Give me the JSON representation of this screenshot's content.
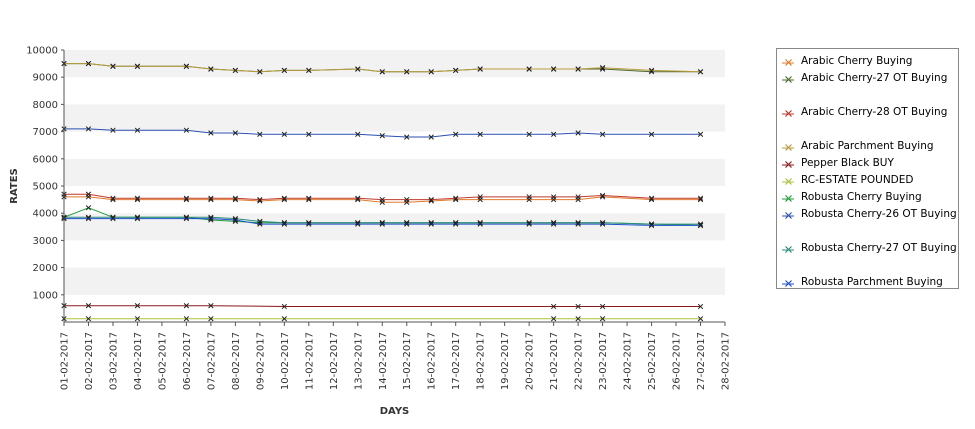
{
  "chart_data": {
    "type": "line",
    "xlabel": "DAYS",
    "ylabel": "RATES",
    "ylim": [
      0,
      10000
    ],
    "yticks": [
      1000,
      2000,
      3000,
      4000,
      5000,
      6000,
      7000,
      8000,
      9000,
      10000
    ],
    "x": [
      "01-02-2017",
      "02-02-2017",
      "03-02-2017",
      "04-02-2017",
      "05-02-2017",
      "06-02-2017",
      "07-02-2017",
      "08-02-2017",
      "09-02-2017",
      "10-02-2017",
      "11-02-2017",
      "12-02-2017",
      "13-02-2017",
      "14-02-2017",
      "15-02-2017",
      "16-02-2017",
      "17-02-2017",
      "18-02-2017",
      "19-02-2017",
      "20-02-2017",
      "21-02-2017",
      "22-02-2017",
      "23-02-2017",
      "24-02-2017",
      "25-02-2017",
      "26-02-2017",
      "27-02-2017",
      "28-02-2017"
    ],
    "grid": "alternating horizontal bands",
    "legend_position": "right",
    "series": [
      {
        "name": "Arabic Cherry Buying",
        "color": "#e07b2a",
        "points": [
          [
            0,
            4600
          ],
          [
            1,
            4600
          ],
          [
            2,
            4500
          ],
          [
            3,
            4500
          ],
          [
            5,
            4500
          ],
          [
            6,
            4500
          ],
          [
            7,
            4500
          ],
          [
            8,
            4450
          ],
          [
            9,
            4500
          ],
          [
            10,
            4500
          ],
          [
            12,
            4500
          ],
          [
            13,
            4400
          ],
          [
            14,
            4400
          ],
          [
            15,
            4450
          ],
          [
            16,
            4500
          ],
          [
            17,
            4500
          ],
          [
            19,
            4500
          ],
          [
            20,
            4500
          ],
          [
            21,
            4500
          ],
          [
            22,
            4600
          ],
          [
            24,
            4500
          ],
          [
            26,
            4500
          ]
        ]
      },
      {
        "name": "Arabic Cherry-27 OT Buying",
        "color": "#4d6b2e",
        "points": [
          [
            0,
            9500
          ],
          [
            1,
            9500
          ],
          [
            2,
            9400
          ],
          [
            3,
            9400
          ],
          [
            5,
            9400
          ],
          [
            6,
            9300
          ],
          [
            7,
            9250
          ],
          [
            8,
            9200
          ],
          [
            9,
            9250
          ],
          [
            10,
            9250
          ],
          [
            12,
            9300
          ],
          [
            13,
            9200
          ],
          [
            14,
            9200
          ],
          [
            15,
            9200
          ],
          [
            16,
            9250
          ],
          [
            17,
            9300
          ],
          [
            19,
            9300
          ],
          [
            20,
            9300
          ],
          [
            21,
            9300
          ],
          [
            22,
            9300
          ],
          [
            24,
            9200
          ],
          [
            26,
            9200
          ]
        ]
      },
      {
        "name": "Arabic Cherry-28 OT Buying",
        "color": "#c0392b",
        "points": [
          [
            0,
            4700
          ],
          [
            1,
            4700
          ],
          [
            2,
            4550
          ],
          [
            3,
            4550
          ],
          [
            5,
            4550
          ],
          [
            6,
            4550
          ],
          [
            7,
            4550
          ],
          [
            8,
            4500
          ],
          [
            9,
            4550
          ],
          [
            10,
            4550
          ],
          [
            12,
            4550
          ],
          [
            13,
            4500
          ],
          [
            14,
            4500
          ],
          [
            15,
            4500
          ],
          [
            16,
            4550
          ],
          [
            17,
            4600
          ],
          [
            19,
            4600
          ],
          [
            20,
            4600
          ],
          [
            21,
            4600
          ],
          [
            22,
            4650
          ],
          [
            24,
            4550
          ],
          [
            26,
            4550
          ]
        ]
      },
      {
        "name": "Arabic Parchment Buying",
        "color": "#b89c3c",
        "points": [
          [
            0,
            9500
          ],
          [
            1,
            9500
          ],
          [
            2,
            9400
          ],
          [
            3,
            9400
          ],
          [
            5,
            9400
          ],
          [
            6,
            9300
          ],
          [
            7,
            9250
          ],
          [
            8,
            9200
          ],
          [
            9,
            9250
          ],
          [
            10,
            9250
          ],
          [
            12,
            9300
          ],
          [
            13,
            9200
          ],
          [
            14,
            9200
          ],
          [
            15,
            9200
          ],
          [
            16,
            9250
          ],
          [
            17,
            9300
          ],
          [
            19,
            9300
          ],
          [
            20,
            9300
          ],
          [
            21,
            9300
          ],
          [
            22,
            9350
          ],
          [
            24,
            9250
          ],
          [
            26,
            9200
          ]
        ]
      },
      {
        "name": "Pepper Black BUY",
        "color": "#8b1a1a",
        "points": [
          [
            0,
            600
          ],
          [
            1,
            600
          ],
          [
            3,
            600
          ],
          [
            5,
            600
          ],
          [
            6,
            600
          ],
          [
            9,
            570
          ],
          [
            20,
            570
          ],
          [
            21,
            570
          ],
          [
            22,
            570
          ],
          [
            26,
            570
          ]
        ]
      },
      {
        "name": "RC-ESTATE POUNDED",
        "color": "#a8c43c",
        "points": [
          [
            0,
            120
          ],
          [
            1,
            120
          ],
          [
            3,
            120
          ],
          [
            5,
            120
          ],
          [
            6,
            120
          ],
          [
            9,
            120
          ],
          [
            20,
            120
          ],
          [
            21,
            120
          ],
          [
            22,
            120
          ],
          [
            26,
            120
          ]
        ]
      },
      {
        "name": "Robusta Cherry Buying",
        "color": "#1f9e3a",
        "points": [
          [
            0,
            3850
          ],
          [
            1,
            4200
          ],
          [
            2,
            3850
          ],
          [
            3,
            3850
          ],
          [
            5,
            3850
          ],
          [
            6,
            3750
          ],
          [
            7,
            3700
          ],
          [
            8,
            3650
          ],
          [
            9,
            3650
          ],
          [
            10,
            3650
          ],
          [
            12,
            3650
          ],
          [
            13,
            3650
          ],
          [
            14,
            3650
          ],
          [
            15,
            3650
          ],
          [
            16,
            3650
          ],
          [
            17,
            3650
          ],
          [
            19,
            3650
          ],
          [
            20,
            3650
          ],
          [
            21,
            3650
          ],
          [
            22,
            3650
          ],
          [
            24,
            3600
          ],
          [
            26,
            3550
          ]
        ]
      },
      {
        "name": "Robusta Cherry-26 OT Buying",
        "color": "#2a4fb0",
        "points": [
          [
            0,
            7100
          ],
          [
            1,
            7100
          ],
          [
            2,
            7050
          ],
          [
            3,
            7050
          ],
          [
            5,
            7050
          ],
          [
            6,
            6950
          ],
          [
            7,
            6950
          ],
          [
            8,
            6900
          ],
          [
            9,
            6900
          ],
          [
            10,
            6900
          ],
          [
            12,
            6900
          ],
          [
            13,
            6850
          ],
          [
            14,
            6800
          ],
          [
            15,
            6800
          ],
          [
            16,
            6900
          ],
          [
            17,
            6900
          ],
          [
            19,
            6900
          ],
          [
            20,
            6900
          ],
          [
            21,
            6950
          ],
          [
            22,
            6900
          ],
          [
            24,
            6900
          ],
          [
            26,
            6900
          ]
        ]
      },
      {
        "name": "Robusta Cherry-27 OT Buying",
        "color": "#2a8c7a",
        "points": [
          [
            0,
            3850
          ],
          [
            1,
            3850
          ],
          [
            2,
            3850
          ],
          [
            3,
            3850
          ],
          [
            5,
            3850
          ],
          [
            6,
            3850
          ],
          [
            7,
            3800
          ],
          [
            8,
            3700
          ],
          [
            9,
            3650
          ],
          [
            10,
            3650
          ],
          [
            12,
            3650
          ],
          [
            13,
            3650
          ],
          [
            14,
            3650
          ],
          [
            15,
            3650
          ],
          [
            16,
            3650
          ],
          [
            17,
            3650
          ],
          [
            19,
            3650
          ],
          [
            20,
            3650
          ],
          [
            21,
            3650
          ],
          [
            22,
            3650
          ],
          [
            24,
            3600
          ],
          [
            26,
            3600
          ]
        ]
      },
      {
        "name": "Robusta Parchment Buying",
        "color": "#1f4fd0",
        "points": [
          [
            0,
            3800
          ],
          [
            1,
            3800
          ],
          [
            2,
            3800
          ],
          [
            3,
            3800
          ],
          [
            5,
            3800
          ],
          [
            6,
            3800
          ],
          [
            7,
            3750
          ],
          [
            8,
            3600
          ],
          [
            9,
            3600
          ],
          [
            10,
            3600
          ],
          [
            12,
            3600
          ],
          [
            13,
            3600
          ],
          [
            14,
            3600
          ],
          [
            15,
            3600
          ],
          [
            16,
            3600
          ],
          [
            17,
            3600
          ],
          [
            19,
            3600
          ],
          [
            20,
            3600
          ],
          [
            21,
            3600
          ],
          [
            22,
            3600
          ],
          [
            24,
            3550
          ],
          [
            26,
            3550
          ]
        ]
      }
    ]
  }
}
